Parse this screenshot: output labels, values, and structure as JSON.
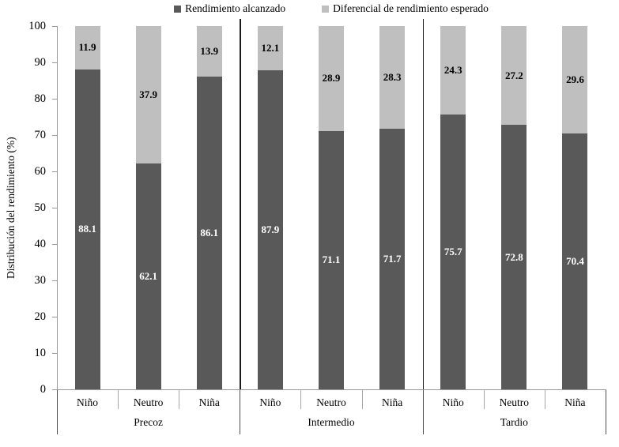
{
  "chart_data": {
    "type": "bar",
    "stacked": true,
    "orientation": "vertical",
    "ylabel": "Distribución del rendimiento (%)",
    "ylim": [
      0,
      100
    ],
    "yticks": [
      0,
      10,
      20,
      30,
      40,
      50,
      60,
      70,
      80,
      90,
      100
    ],
    "grid": false,
    "legend_position": "top-center",
    "groups": [
      {
        "label": "Precoz",
        "categories": [
          "Niño",
          "Neutro",
          "Niña"
        ]
      },
      {
        "label": "Intermedio",
        "categories": [
          "Niño",
          "Neutro",
          "Niña"
        ]
      },
      {
        "label": "Tardio",
        "categories": [
          "Niño",
          "Neutro",
          "Niña"
        ]
      }
    ],
    "categories": [
      "Niño",
      "Neutro",
      "Niña",
      "Niño",
      "Neutro",
      "Niña",
      "Niño",
      "Neutro",
      "Niña"
    ],
    "series": [
      {
        "name": "Rendimiento alcanzado",
        "color": "#595959",
        "label_color": "#ffffff",
        "values": [
          88.1,
          62.1,
          86.1,
          87.9,
          71.1,
          71.7,
          75.7,
          72.8,
          70.4
        ]
      },
      {
        "name": "Diferencial de rendimiento esperado",
        "color": "#bfbfbf",
        "label_color": "#000000",
        "values": [
          11.9,
          37.9,
          13.9,
          12.1,
          28.9,
          28.3,
          24.3,
          27.2,
          29.6
        ]
      }
    ]
  },
  "colors": {
    "axis_line": "#999999",
    "group_separator": "#1a1a1a",
    "tick_short": "#a6a6a6",
    "tick_long": "#4d4d4d",
    "background": "#ffffff"
  }
}
